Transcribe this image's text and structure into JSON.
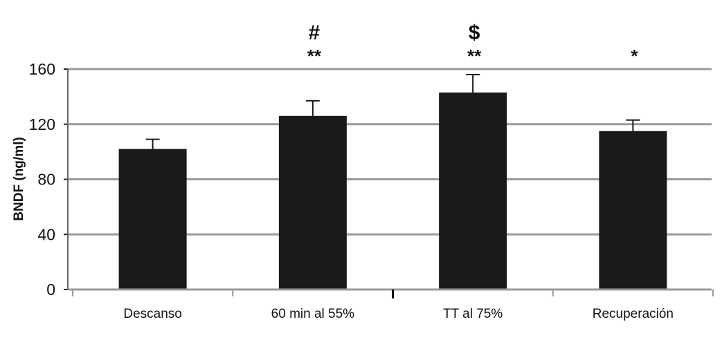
{
  "chart_data": {
    "type": "bar",
    "categories": [
      "Descanso",
      "60 min al 55%",
      "TT al 75%",
      "Recuperación"
    ],
    "values": [
      102,
      126,
      143,
      115
    ],
    "error_upper": [
      109,
      137,
      156,
      123
    ],
    "xlabel": "",
    "ylabel": "BNDF (ng/ml)",
    "ylim": [
      0,
      160
    ],
    "yticks": [
      "0",
      "40",
      "80",
      "120",
      "160"
    ],
    "annotations": [
      {
        "category": "60 min al 55%",
        "symbol": "#",
        "stars": "**"
      },
      {
        "category": "TT al 75%",
        "symbol": "$",
        "stars": "**"
      },
      {
        "category": "Recuperación",
        "symbol": "",
        "stars": "*"
      }
    ],
    "grid": true,
    "bar_color": "#1a1a1a",
    "grid_color": "#999999"
  }
}
